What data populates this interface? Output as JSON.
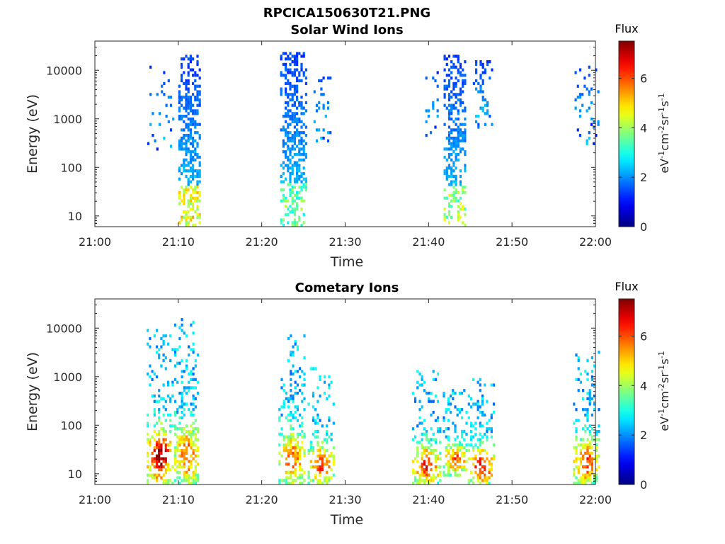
{
  "figure_title": "RPCICA150630T21.PNG",
  "colorbar": {
    "title": "Flux",
    "label_parts": [
      "eV",
      "-1",
      "cm",
      "-2",
      "sr",
      "-1",
      "s",
      "-1"
    ],
    "ticks": [
      0,
      2,
      4,
      6
    ],
    "range": [
      0,
      7.5
    ],
    "colormap": "jet"
  },
  "chart_data": [
    {
      "type": "heatmap",
      "title": "Solar Wind Ions",
      "xlabel": "Time",
      "ylabel": "Energy (eV)",
      "x_range": [
        "21:00",
        "22:00"
      ],
      "x_ticks": [
        "21:00",
        "21:10",
        "21:20",
        "21:30",
        "21:40",
        "21:50",
        "22:00"
      ],
      "y_scale": "log",
      "y_range": [
        6,
        40000
      ],
      "y_ticks": [
        10,
        100,
        1000,
        10000
      ],
      "bursts": [
        {
          "start_min": 6.0,
          "end_min": 9.3,
          "e_min": 250,
          "e_max": 12000,
          "peak_flux": 1.9,
          "density": 0.12
        },
        {
          "start_min": 10.0,
          "end_min": 12.6,
          "e_min": 6,
          "e_max": 20000,
          "peak_flux": 4.8,
          "density": 0.65
        },
        {
          "start_min": 22.2,
          "end_min": 25.3,
          "e_min": 6,
          "e_max": 25000,
          "peak_flux": 3.6,
          "density": 0.62
        },
        {
          "start_min": 26.2,
          "end_min": 28.2,
          "e_min": 350,
          "e_max": 9000,
          "peak_flux": 2.0,
          "density": 0.25
        },
        {
          "start_min": 39.6,
          "end_min": 41.2,
          "e_min": 500,
          "e_max": 12000,
          "peak_flux": 2.1,
          "density": 0.2
        },
        {
          "start_min": 41.8,
          "end_min": 44.3,
          "e_min": 6,
          "e_max": 20000,
          "peak_flux": 4.2,
          "density": 0.58
        },
        {
          "start_min": 45.3,
          "end_min": 47.5,
          "e_min": 700,
          "e_max": 16000,
          "peak_flux": 2.2,
          "density": 0.28
        },
        {
          "start_min": 57.5,
          "end_min": 60.3,
          "e_min": 350,
          "e_max": 14000,
          "peak_flux": 2.0,
          "density": 0.14
        }
      ]
    },
    {
      "type": "heatmap",
      "title": "Cometary Ions",
      "xlabel": "Time",
      "ylabel": "Energy (eV)",
      "x_range": [
        "21:00",
        "22:00"
      ],
      "x_ticks": [
        "21:00",
        "21:10",
        "21:20",
        "21:30",
        "21:40",
        "21:50",
        "22:00"
      ],
      "y_scale": "log",
      "y_range": [
        6,
        40000
      ],
      "y_ticks": [
        10,
        100,
        1000,
        10000
      ],
      "bursts": [
        {
          "start_min": 6.2,
          "end_min": 9.2,
          "e_min": 6,
          "e_max": 13000,
          "peak_flux": 7.3,
          "density": 0.5
        },
        {
          "start_min": 9.5,
          "end_min": 12.4,
          "e_min": 6,
          "e_max": 20000,
          "peak_flux": 6.0,
          "density": 0.55
        },
        {
          "start_min": 22.0,
          "end_min": 25.2,
          "e_min": 6,
          "e_max": 8000,
          "peak_flux": 6.0,
          "density": 0.45
        },
        {
          "start_min": 25.5,
          "end_min": 28.5,
          "e_min": 6,
          "e_max": 1500,
          "peak_flux": 6.3,
          "density": 0.5
        },
        {
          "start_min": 38.0,
          "end_min": 41.3,
          "e_min": 6,
          "e_max": 1300,
          "peak_flux": 6.5,
          "density": 0.5
        },
        {
          "start_min": 41.7,
          "end_min": 44.6,
          "e_min": 10,
          "e_max": 600,
          "peak_flux": 6.0,
          "density": 0.5
        },
        {
          "start_min": 44.7,
          "end_min": 47.8,
          "e_min": 6,
          "e_max": 1000,
          "peak_flux": 6.8,
          "density": 0.5
        },
        {
          "start_min": 57.3,
          "end_min": 60.3,
          "e_min": 6,
          "e_max": 3500,
          "peak_flux": 6.3,
          "density": 0.5
        }
      ]
    }
  ]
}
